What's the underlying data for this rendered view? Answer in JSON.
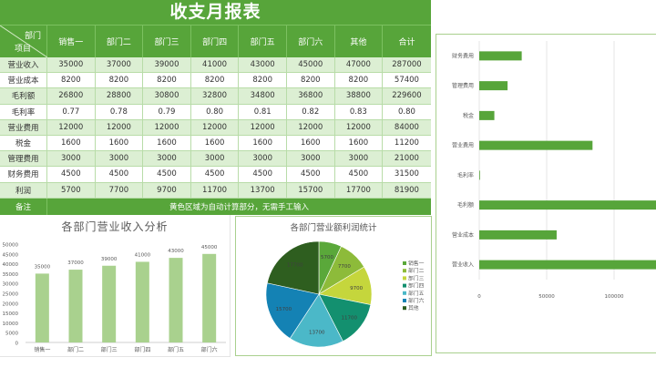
{
  "table": {
    "title": "收支月报表",
    "corner": {
      "top": "部门",
      "bottom": "项目"
    },
    "columns": [
      "销售一",
      "部门二",
      "部门三",
      "部门四",
      "部门五",
      "部门六",
      "其他",
      "合计"
    ],
    "rows": [
      {
        "label": "营业收入",
        "values": [
          "35000",
          "37000",
          "39000",
          "41000",
          "43000",
          "45000",
          "47000",
          "287000"
        ]
      },
      {
        "label": "营业成本",
        "values": [
          "8200",
          "8200",
          "8200",
          "8200",
          "8200",
          "8200",
          "8200",
          "57400"
        ]
      },
      {
        "label": "毛利额",
        "values": [
          "26800",
          "28800",
          "30800",
          "32800",
          "34800",
          "36800",
          "38800",
          "229600"
        ]
      },
      {
        "label": "毛利率",
        "values": [
          "0.77",
          "0.78",
          "0.79",
          "0.80",
          "0.81",
          "0.82",
          "0.83",
          "0.80"
        ]
      },
      {
        "label": "营业费用",
        "values": [
          "12000",
          "12000",
          "12000",
          "12000",
          "12000",
          "12000",
          "12000",
          "84000"
        ]
      },
      {
        "label": "税金",
        "values": [
          "1600",
          "1600",
          "1600",
          "1600",
          "1600",
          "1600",
          "1600",
          "11200"
        ]
      },
      {
        "label": "管理费用",
        "values": [
          "3000",
          "3000",
          "3000",
          "3000",
          "3000",
          "3000",
          "3000",
          "21000"
        ]
      },
      {
        "label": "财务费用",
        "values": [
          "4500",
          "4500",
          "4500",
          "4500",
          "4500",
          "4500",
          "4500",
          "31500"
        ]
      },
      {
        "label": "利润",
        "values": [
          "5700",
          "7700",
          "9700",
          "11700",
          "13700",
          "15700",
          "17700",
          "81900"
        ]
      }
    ],
    "note": {
      "label": "备注",
      "text": "黄色区域为自动计算部分，无需手工输入"
    }
  },
  "colors": {
    "header_green": "#57a53a",
    "row_alt": "#dcefd3",
    "bar_light": "#a9d18e",
    "hbar_green": "#57a53a"
  },
  "chart_data": [
    {
      "type": "bar",
      "title": "各部门营业收入分析",
      "categories": [
        "销售一",
        "部门二",
        "部门三",
        "部门四",
        "部门五",
        "部门六"
      ],
      "values": [
        35000,
        37000,
        39000,
        41000,
        43000,
        45000
      ],
      "data_labels": [
        "35000",
        "37000",
        "39000",
        "41000",
        "43000",
        "45000"
      ],
      "yticks": [
        "0",
        "5000",
        "10000",
        "15000",
        "20000",
        "25000",
        "30000",
        "35000",
        "40000",
        "45000",
        "50000"
      ],
      "ylim": [
        0,
        50000
      ],
      "xlabel": "",
      "ylabel": ""
    },
    {
      "type": "pie",
      "title": "各部门营业额利润统计",
      "categories": [
        "销售一",
        "部门二",
        "部门三",
        "部门四",
        "部门五",
        "部门六",
        "其他"
      ],
      "values": [
        5700,
        7700,
        9700,
        11700,
        13700,
        15700,
        17700
      ],
      "data_labels": [
        "5700",
        "7700",
        "9700",
        "11700",
        "13700",
        "15700",
        "17700"
      ],
      "colors": [
        "#5aa83a",
        "#8dbb3a",
        "#c5d63c",
        "#13906f",
        "#4bb8c8",
        "#1482b4",
        "#2e5e1f"
      ],
      "legend_position": "right"
    },
    {
      "type": "bar",
      "orientation": "horizontal",
      "title": "",
      "categories": [
        "营业收入",
        "营业成本",
        "毛利额",
        "毛利率",
        "营业费用",
        "税金",
        "管理费用",
        "财务费用"
      ],
      "values": [
        287000,
        57400,
        229600,
        0.8,
        84000,
        11200,
        21000,
        31500
      ],
      "xticks": [
        "0",
        "50000",
        "100000"
      ],
      "xlim": [
        0,
        150000
      ]
    }
  ]
}
